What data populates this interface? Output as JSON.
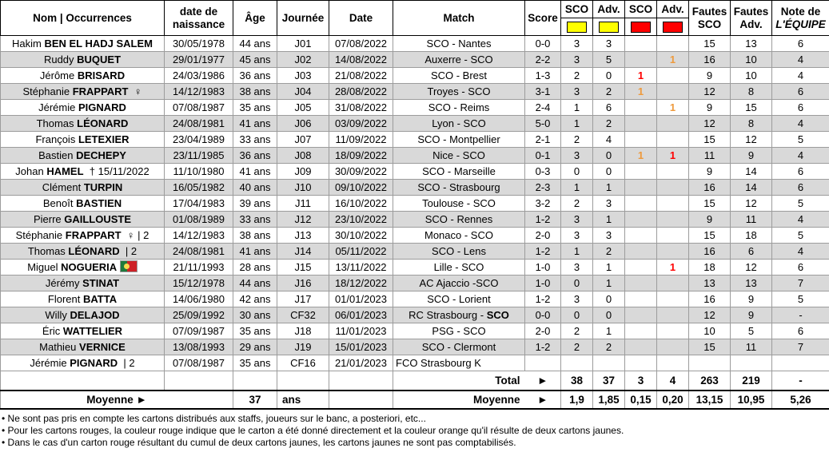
{
  "colors": {
    "yellow_card": "#FFFF00",
    "red_card": "#FF0000",
    "red_direct": "#FF0000",
    "orange_two_yellows": "#EE9A3C",
    "row_alt": "#D9D9D9"
  },
  "header": {
    "nom": "Nom | Occurrences",
    "naissance_l1": "date de",
    "naissance_l2": "naissance",
    "age": "Âge",
    "journee": "Journée",
    "date": "Date",
    "match": "Match",
    "score": "Score",
    "cards": [
      {
        "label": "SCO",
        "card": "yellow"
      },
      {
        "label": "Adv.",
        "card": "yellow"
      },
      {
        "label": "SCO",
        "card": "red"
      },
      {
        "label": "Adv.",
        "card": "red"
      }
    ],
    "fautes_sco_l1": "Fautes",
    "fautes_sco_l2": "SCO",
    "fautes_adv_l1": "Fautes",
    "fautes_adv_l2": "Adv.",
    "note_l1": "Note de",
    "note_l2": "L'ÉQUIPE"
  },
  "rows": [
    {
      "name_first": "Hakim",
      "name_last": "BEN EL HADJ SALEM",
      "name_suffix": "",
      "flag": "",
      "birth_date": "30/05/1978",
      "age": "44 ans",
      "journee": "J01",
      "match_date": "07/08/2022",
      "match": "SCO - Nantes",
      "match_bold_team": "",
      "match_align": "",
      "score": "0-0",
      "yellow_sco": "3",
      "yellow_adv": "3",
      "red_sco": "",
      "red_sco_color": "",
      "red_adv": "",
      "red_adv_color": "",
      "fouls_sco": "15",
      "fouls_adv": "13",
      "note": "6"
    },
    {
      "name_first": "Ruddy",
      "name_last": "BUQUET",
      "name_suffix": "",
      "flag": "",
      "birth_date": "29/01/1977",
      "age": "45 ans",
      "journee": "J02",
      "match_date": "14/08/2022",
      "match": "Auxerre - SCO",
      "match_bold_team": "",
      "match_align": "",
      "score": "2-2",
      "yellow_sco": "3",
      "yellow_adv": "5",
      "red_sco": "",
      "red_sco_color": "",
      "red_adv": "1",
      "red_adv_color": "orange",
      "fouls_sco": "16",
      "fouls_adv": "10",
      "note": "4"
    },
    {
      "name_first": "Jérôme",
      "name_last": "BRISARD",
      "name_suffix": "",
      "flag": "",
      "birth_date": "24/03/1986",
      "age": "36 ans",
      "journee": "J03",
      "match_date": "21/08/2022",
      "match": "SCO - Brest",
      "match_bold_team": "",
      "match_align": "",
      "score": "1-3",
      "yellow_sco": "2",
      "yellow_adv": "0",
      "red_sco": "1",
      "red_sco_color": "red",
      "red_adv": "",
      "red_adv_color": "",
      "fouls_sco": "9",
      "fouls_adv": "10",
      "note": "4"
    },
    {
      "name_first": "Stéphanie",
      "name_last": "FRAPPART",
      "name_suffix": "♀",
      "flag": "",
      "birth_date": "14/12/1983",
      "age": "38 ans",
      "journee": "J04",
      "match_date": "28/08/2022",
      "match": "Troyes - SCO",
      "match_bold_team": "",
      "match_align": "",
      "score": "3-1",
      "yellow_sco": "3",
      "yellow_adv": "2",
      "red_sco": "1",
      "red_sco_color": "orange",
      "red_adv": "",
      "red_adv_color": "",
      "fouls_sco": "12",
      "fouls_adv": "8",
      "note": "6"
    },
    {
      "name_first": "Jérémie",
      "name_last": "PIGNARD",
      "name_suffix": "",
      "flag": "",
      "birth_date": "07/08/1987",
      "age": "35 ans",
      "journee": "J05",
      "match_date": "31/08/2022",
      "match": "SCO - Reims",
      "match_bold_team": "",
      "match_align": "",
      "score": "2-4",
      "yellow_sco": "1",
      "yellow_adv": "6",
      "red_sco": "",
      "red_sco_color": "",
      "red_adv": "1",
      "red_adv_color": "orange",
      "fouls_sco": "9",
      "fouls_adv": "15",
      "note": "6"
    },
    {
      "name_first": "Thomas",
      "name_last": "LÉONARD",
      "name_suffix": "",
      "flag": "",
      "birth_date": "24/08/1981",
      "age": "41 ans",
      "journee": "J06",
      "match_date": "03/09/2022",
      "match": "Lyon - SCO",
      "match_bold_team": "",
      "match_align": "",
      "score": "5-0",
      "yellow_sco": "1",
      "yellow_adv": "2",
      "red_sco": "",
      "red_sco_color": "",
      "red_adv": "",
      "red_adv_color": "",
      "fouls_sco": "12",
      "fouls_adv": "8",
      "note": "4"
    },
    {
      "name_first": "François",
      "name_last": "LETEXIER",
      "name_suffix": "",
      "flag": "",
      "birth_date": "23/04/1989",
      "age": "33 ans",
      "journee": "J07",
      "match_date": "11/09/2022",
      "match": "SCO - Montpellier",
      "match_bold_team": "",
      "match_align": "",
      "score": "2-1",
      "yellow_sco": "2",
      "yellow_adv": "4",
      "red_sco": "",
      "red_sco_color": "",
      "red_adv": "",
      "red_adv_color": "",
      "fouls_sco": "15",
      "fouls_adv": "12",
      "note": "5"
    },
    {
      "name_first": "Bastien",
      "name_last": "DECHEPY",
      "name_suffix": "",
      "flag": "",
      "birth_date": "23/11/1985",
      "age": "36 ans",
      "journee": "J08",
      "match_date": "18/09/2022",
      "match": "Nice - SCO",
      "match_bold_team": "",
      "match_align": "",
      "score": "0-1",
      "yellow_sco": "3",
      "yellow_adv": "0",
      "red_sco": "1",
      "red_sco_color": "orange",
      "red_adv": "1",
      "red_adv_color": "red",
      "fouls_sco": "11",
      "fouls_adv": "9",
      "note": "4"
    },
    {
      "name_first": "Johan",
      "name_last": "HAMEL",
      "name_suffix": "† 15/11/2022",
      "flag": "",
      "birth_date": "11/10/1980",
      "age": "41 ans",
      "journee": "J09",
      "match_date": "30/09/2022",
      "match": "SCO - Marseille",
      "match_bold_team": "",
      "match_align": "",
      "score": "0-3",
      "yellow_sco": "0",
      "yellow_adv": "0",
      "red_sco": "",
      "red_sco_color": "",
      "red_adv": "",
      "red_adv_color": "",
      "fouls_sco": "9",
      "fouls_adv": "14",
      "note": "6"
    },
    {
      "name_first": "Clément",
      "name_last": "TURPIN",
      "name_suffix": "",
      "flag": "",
      "birth_date": "16/05/1982",
      "age": "40 ans",
      "journee": "J10",
      "match_date": "09/10/2022",
      "match": "SCO - Strasbourg",
      "match_bold_team": "",
      "match_align": "",
      "score": "2-3",
      "yellow_sco": "1",
      "yellow_adv": "1",
      "red_sco": "",
      "red_sco_color": "",
      "red_adv": "",
      "red_adv_color": "",
      "fouls_sco": "16",
      "fouls_adv": "14",
      "note": "6"
    },
    {
      "name_first": "Benoît",
      "name_last": "BASTIEN",
      "name_suffix": "",
      "flag": "",
      "birth_date": "17/04/1983",
      "age": "39 ans",
      "journee": "J11",
      "match_date": "16/10/2022",
      "match": "Toulouse - SCO",
      "match_bold_team": "",
      "match_align": "",
      "score": "3-2",
      "yellow_sco": "2",
      "yellow_adv": "3",
      "red_sco": "",
      "red_sco_color": "",
      "red_adv": "",
      "red_adv_color": "",
      "fouls_sco": "15",
      "fouls_adv": "12",
      "note": "5"
    },
    {
      "name_first": "Pierre",
      "name_last": "GAILLOUSTE",
      "name_suffix": "",
      "flag": "",
      "birth_date": "01/08/1989",
      "age": "33 ans",
      "journee": "J12",
      "match_date": "23/10/2022",
      "match": "SCO - Rennes",
      "match_bold_team": "",
      "match_align": "",
      "score": "1-2",
      "yellow_sco": "3",
      "yellow_adv": "1",
      "red_sco": "",
      "red_sco_color": "",
      "red_adv": "",
      "red_adv_color": "",
      "fouls_sco": "9",
      "fouls_adv": "11",
      "note": "4"
    },
    {
      "name_first": "Stéphanie",
      "name_last": "FRAPPART",
      "name_suffix": "♀ | 2",
      "flag": "",
      "birth_date": "14/12/1983",
      "age": "38 ans",
      "journee": "J13",
      "match_date": "30/10/2022",
      "match": "Monaco - SCO",
      "match_bold_team": "",
      "match_align": "",
      "score": "2-0",
      "yellow_sco": "3",
      "yellow_adv": "3",
      "red_sco": "",
      "red_sco_color": "",
      "red_adv": "",
      "red_adv_color": "",
      "fouls_sco": "15",
      "fouls_adv": "18",
      "note": "5"
    },
    {
      "name_first": "Thomas",
      "name_last": "LÉONARD",
      "name_suffix": "| 2",
      "flag": "",
      "birth_date": "24/08/1981",
      "age": "41 ans",
      "journee": "J14",
      "match_date": "05/11/2022",
      "match": "SCO - Lens",
      "match_bold_team": "",
      "match_align": "",
      "score": "1-2",
      "yellow_sco": "1",
      "yellow_adv": "2",
      "red_sco": "",
      "red_sco_color": "",
      "red_adv": "",
      "red_adv_color": "",
      "fouls_sco": "16",
      "fouls_adv": "6",
      "note": "4"
    },
    {
      "name_first": "Miguel",
      "name_last": "NOGUERIA",
      "name_suffix": "",
      "flag": "portugal",
      "birth_date": "21/11/1993",
      "age": "28 ans",
      "journee": "J15",
      "match_date": "13/11/2022",
      "match": "Lille - SCO",
      "match_bold_team": "",
      "match_align": "",
      "score": "1-0",
      "yellow_sco": "3",
      "yellow_adv": "1",
      "red_sco": "",
      "red_sco_color": "",
      "red_adv": "1",
      "red_adv_color": "red",
      "fouls_sco": "18",
      "fouls_adv": "12",
      "note": "6"
    },
    {
      "name_first": "Jérémy",
      "name_last": "STINAT",
      "name_suffix": "",
      "flag": "",
      "birth_date": "15/12/1978",
      "age": "44 ans",
      "journee": "J16",
      "match_date": "18/12/2022",
      "match": "AC Ajaccio -SCO",
      "match_bold_team": "",
      "match_align": "",
      "score": "1-0",
      "yellow_sco": "0",
      "yellow_adv": "1",
      "red_sco": "",
      "red_sco_color": "",
      "red_adv": "",
      "red_adv_color": "",
      "fouls_sco": "13",
      "fouls_adv": "13",
      "note": "7"
    },
    {
      "name_first": "Florent",
      "name_last": "BATTA",
      "name_suffix": "",
      "flag": "",
      "birth_date": "14/06/1980",
      "age": "42 ans",
      "journee": "J17",
      "match_date": "01/01/2023",
      "match": "SCO - Lorient",
      "match_bold_team": "",
      "match_align": "",
      "score": "1-2",
      "yellow_sco": "3",
      "yellow_adv": "0",
      "red_sco": "",
      "red_sco_color": "",
      "red_adv": "",
      "red_adv_color": "",
      "fouls_sco": "16",
      "fouls_adv": "9",
      "note": "5"
    },
    {
      "name_first": "Willy",
      "name_last": "DELAJOD",
      "name_suffix": "",
      "flag": "",
      "birth_date": "25/09/1992",
      "age": "30 ans",
      "journee": "CF32",
      "match_date": "06/01/2023",
      "match": "RC Strasbourg - ",
      "match_bold_team": "SCO",
      "match_align": "",
      "score": "0-0",
      "yellow_sco": "0",
      "yellow_adv": "0",
      "red_sco": "",
      "red_sco_color": "",
      "red_adv": "",
      "red_adv_color": "",
      "fouls_sco": "12",
      "fouls_adv": "9",
      "note": "-"
    },
    {
      "name_first": "Éric",
      "name_last": "WATTELIER",
      "name_suffix": "",
      "flag": "",
      "birth_date": "07/09/1987",
      "age": "35 ans",
      "journee": "J18",
      "match_date": "11/01/2023",
      "match": "PSG - SCO",
      "match_bold_team": "",
      "match_align": "",
      "score": "2-0",
      "yellow_sco": "2",
      "yellow_adv": "1",
      "red_sco": "",
      "red_sco_color": "",
      "red_adv": "",
      "red_adv_color": "",
      "fouls_sco": "10",
      "fouls_adv": "5",
      "note": "6"
    },
    {
      "name_first": "Mathieu",
      "name_last": "VERNICE",
      "name_suffix": "",
      "flag": "",
      "birth_date": "13/08/1993",
      "age": "29 ans",
      "journee": "J19",
      "match_date": "15/01/2023",
      "match": "SCO - Clermont",
      "match_bold_team": "",
      "match_align": "",
      "score": "1-2",
      "yellow_sco": "2",
      "yellow_adv": "2",
      "red_sco": "",
      "red_sco_color": "",
      "red_adv": "",
      "red_adv_color": "",
      "fouls_sco": "15",
      "fouls_adv": "11",
      "note": "7"
    },
    {
      "name_first": "Jérémie",
      "name_last": "PIGNARD",
      "name_suffix": "| 2",
      "flag": "",
      "birth_date": "07/08/1987",
      "age": "35 ans",
      "journee": "CF16",
      "match_date": "21/01/2023",
      "match": "FCO Strasbourg K",
      "match_bold_team": "",
      "match_align": "left",
      "score": "",
      "yellow_sco": "",
      "yellow_adv": "",
      "red_sco": "",
      "red_sco_color": "",
      "red_adv": "",
      "red_adv_color": "",
      "fouls_sco": "",
      "fouls_adv": "",
      "note": ""
    }
  ],
  "total": {
    "label": "Total",
    "arrow": "►",
    "values": [
      "38",
      "37",
      "3",
      "4",
      "263",
      "219",
      "-"
    ]
  },
  "moyenne": {
    "left_label": "Moyenne ►",
    "age": "37",
    "age_unit": "ans",
    "label": "Moyenne",
    "arrow": "►",
    "values": [
      "1,9",
      "1,85",
      "0,15",
      "0,20",
      "13,15",
      "10,95",
      "5,26"
    ]
  },
  "notes": [
    "• Ne sont pas pris en compte les cartons distribués aux staffs, joueurs sur le banc, a posteriori, etc...",
    "• Pour les cartons rouges, la couleur rouge indique que le carton a été donné directement et la couleur orange qu'il résulte de deux cartons jaunes.",
    "• Dans le cas d'un carton rouge résultant du cumul de deux cartons jaunes, les cartons jaunes ne sont pas comptabilisés."
  ]
}
